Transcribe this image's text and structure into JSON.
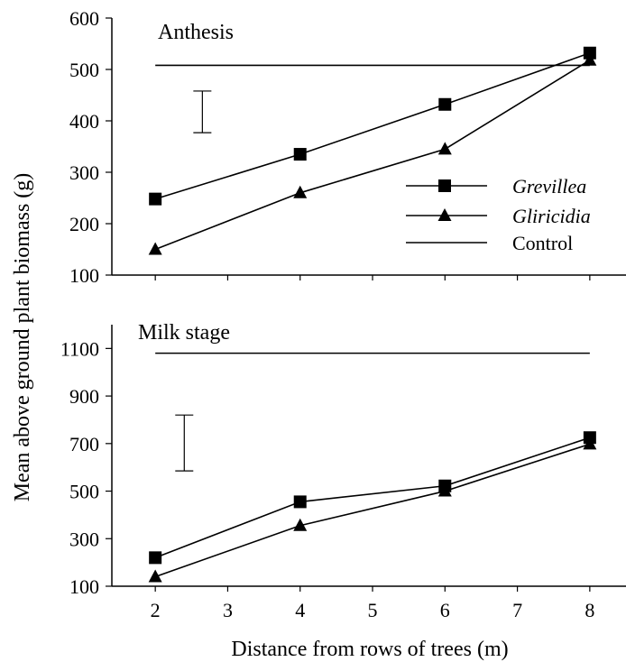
{
  "chart_data": [
    {
      "type": "line",
      "title": "Anthesis",
      "x": [
        2,
        4,
        6,
        8
      ],
      "xlim": [
        1.4,
        8.5
      ],
      "ylim": [
        100,
        600
      ],
      "yticks": [
        100,
        200,
        300,
        400,
        500,
        600
      ],
      "grid": false,
      "series": [
        {
          "name": "Grevillea",
          "marker": "square",
          "values": [
            248,
            335,
            432,
            532
          ]
        },
        {
          "name": "Gliricidia",
          "marker": "triangle",
          "values": [
            150,
            260,
            345,
            518
          ]
        },
        {
          "name": "Control",
          "marker": "none",
          "x": [
            2,
            8
          ],
          "values": [
            508,
            508
          ]
        }
      ],
      "error_bar": {
        "x": 2.65,
        "low": 377,
        "high": 458
      },
      "legend": {
        "placement": "right-center",
        "entries": [
          "Grevillea",
          "Gliricidia",
          "Control"
        ]
      }
    },
    {
      "type": "line",
      "title": "Milk stage",
      "x": [
        2,
        4,
        6,
        8
      ],
      "xlim": [
        1.4,
        8.5
      ],
      "ylim": [
        100,
        1200
      ],
      "yticks": [
        100,
        300,
        500,
        700,
        900,
        1100
      ],
      "xticks": [
        2,
        3,
        4,
        5,
        6,
        7,
        8
      ],
      "grid": false,
      "series": [
        {
          "name": "Grevillea",
          "marker": "square",
          "values": [
            220,
            455,
            522,
            725
          ]
        },
        {
          "name": "Gliricidia",
          "marker": "triangle",
          "values": [
            140,
            355,
            500,
            698
          ]
        },
        {
          "name": "Control",
          "marker": "none",
          "x": [
            2,
            8
          ],
          "values": [
            1080,
            1080
          ]
        }
      ],
      "error_bar": {
        "x": 2.4,
        "low": 585,
        "high": 820
      }
    }
  ],
  "labels": {
    "ylabel": "Mean above ground plant biomass (g)",
    "xlabel": "Distance from rows of trees (m)"
  }
}
